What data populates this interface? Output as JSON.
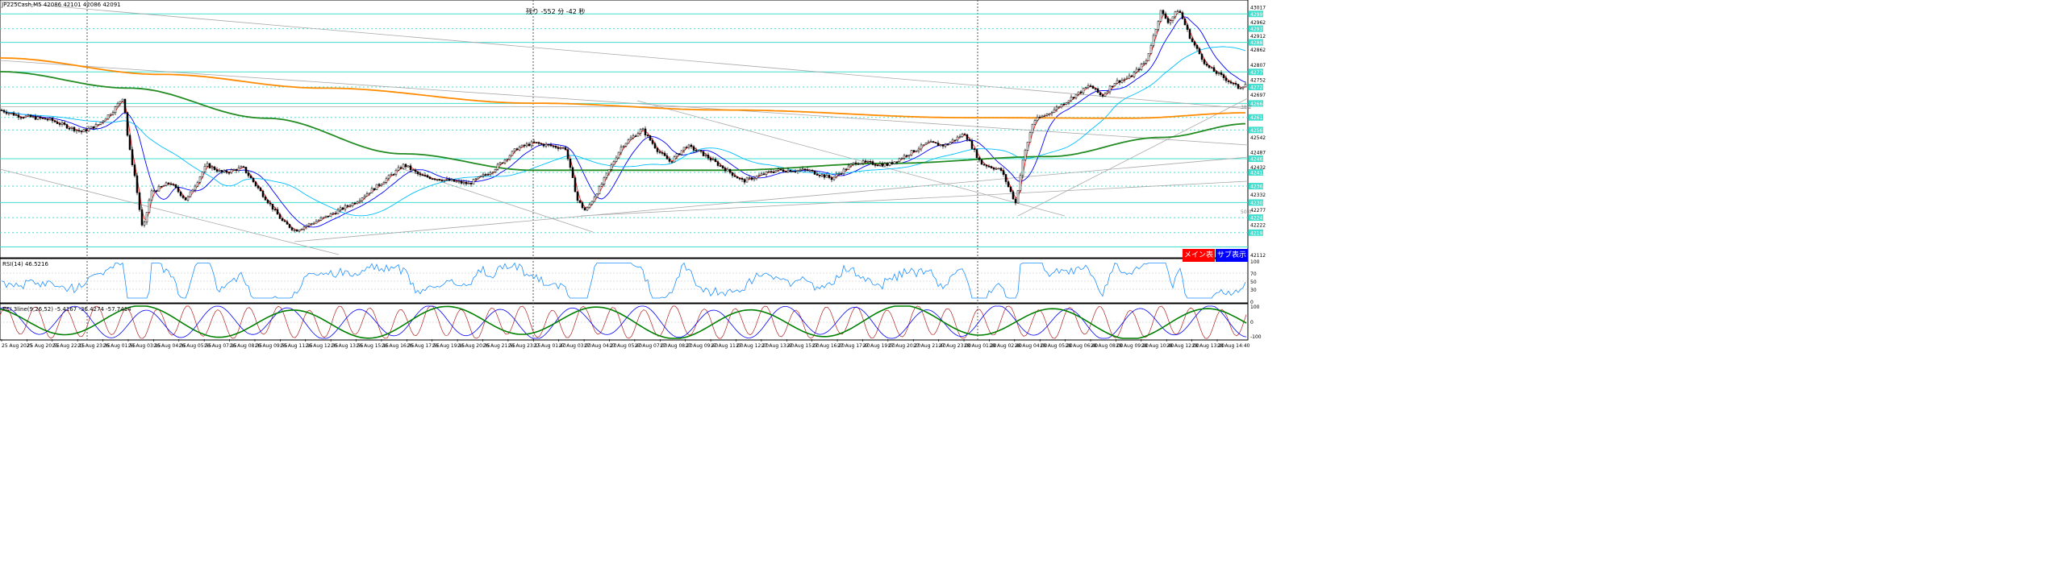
{
  "header": {
    "symbol_info": "JP225Cash,M5  42086 42101 42086 42091",
    "countdown": "残り -552 分 -42 秒"
  },
  "main_axis": {
    "labels": [
      "43017",
      "42962",
      "42912",
      "42862",
      "42807",
      "42752",
      "42697",
      "42542",
      "42487",
      "42432",
      "42332",
      "42277",
      "42222",
      "42112"
    ],
    "highlight_labels": [
      "42991",
      "42937",
      "42887",
      "42779",
      "42724",
      "42664",
      "42613",
      "42567",
      "42462",
      "42412",
      "42362",
      "42302",
      "42247",
      "42192"
    ],
    "fib_labels": [
      "38.2",
      "50.0"
    ]
  },
  "buttons": {
    "main_label": "メイン表示",
    "sub_label": "サブ表示"
  },
  "rsi_panel": {
    "label": "RSI(14) 46.5216",
    "axis_labels": [
      "100",
      "70",
      "50",
      "30",
      "0"
    ]
  },
  "rci_panel": {
    "label": "RCI 3line(9,26,52) -5.4167 -36.4274 -57.7414",
    "axis_labels": [
      "100",
      "0",
      "-100"
    ]
  },
  "time_axis": [
    "25 Aug 2025",
    "25 Aug 20:55",
    "25 Aug 22:15",
    "25 Aug 23:35",
    "26 Aug 01:55",
    "26 Aug 03:15",
    "26 Aug 04:35",
    "26 Aug 05:55",
    "26 Aug 07:15",
    "26 Aug 08:35",
    "26 Aug 09:55",
    "26 Aug 11:15",
    "26 Aug 12:35",
    "26 Aug 13:55",
    "26 Aug 15:15",
    "26 Aug 16:35",
    "26 Aug 17:55",
    "26 Aug 19:15",
    "26 Aug 20:35",
    "26 Aug 21:55",
    "26 Aug 23:15",
    "27 Aug 01:40",
    "27 Aug 03:00",
    "27 Aug 04:20",
    "27 Aug 05:40",
    "27 Aug 07:00",
    "27 Aug 08:20",
    "27 Aug 09:40",
    "27 Aug 11:00",
    "27 Aug 12:20",
    "27 Aug 13:40",
    "27 Aug 15:00",
    "27 Aug 16:20",
    "27 Aug 17:40",
    "27 Aug 19:00",
    "27 Aug 20:20",
    "27 Aug 21:40",
    "27 Aug 23:00",
    "28 Aug 01:20",
    "28 Aug 02:40",
    "28 Aug 04:00",
    "28 Aug 05:20",
    "28 Aug 06:40",
    "28 Aug 08:00",
    "28 Aug 09:20",
    "28 Aug 10:40",
    "28 Aug 12:00",
    "28 Aug 13:20",
    "28 Aug 14:40"
  ],
  "colors": {
    "background": "#ffffff",
    "grid": "#c0c0c0",
    "bull_candle": "#ffffff",
    "bear_candle": "#000000",
    "horizontal_lines": "#40e0d0",
    "dotted_levels": "#40e0d0",
    "ma_fast": "#ff0000",
    "ma_mid": "#0000ff",
    "ma_slow": "#00bfff",
    "ma_long_orange": "#ff8c00",
    "ma_long_green": "#228b22",
    "trendlines": "#a9a9a9",
    "rsi_line": "#1e90ff",
    "rci_short": "#b22222",
    "rci_mid": "#0000ff",
    "rci_long": "#008000",
    "button_main": "#ff0000",
    "button_sub": "#0000ff"
  },
  "chart_data": {
    "type": "candlestick",
    "instrument": "JP225Cash",
    "timeframe": "M5",
    "ylim": [
      42112,
      43030
    ],
    "anchors": [
      [
        0,
        42640
      ],
      [
        20,
        42620
      ],
      [
        60,
        42605
      ],
      [
        100,
        42560
      ],
      [
        120,
        42585
      ],
      [
        140,
        42640
      ],
      [
        152,
        42690
      ],
      [
        158,
        42520
      ],
      [
        166,
        42400
      ],
      [
        176,
        42195
      ],
      [
        186,
        42340
      ],
      [
        210,
        42375
      ],
      [
        230,
        42310
      ],
      [
        255,
        42440
      ],
      [
        275,
        42410
      ],
      [
        300,
        42430
      ],
      [
        320,
        42350
      ],
      [
        350,
        42230
      ],
      [
        365,
        42200
      ],
      [
        400,
        42245
      ],
      [
        440,
        42305
      ],
      [
        470,
        42370
      ],
      [
        500,
        42440
      ],
      [
        520,
        42400
      ],
      [
        540,
        42390
      ],
      [
        580,
        42370
      ],
      [
        610,
        42420
      ],
      [
        640,
        42500
      ],
      [
        660,
        42520
      ],
      [
        700,
        42500
      ],
      [
        715,
        42310
      ],
      [
        725,
        42270
      ],
      [
        745,
        42370
      ],
      [
        770,
        42510
      ],
      [
        795,
        42570
      ],
      [
        815,
        42490
      ],
      [
        830,
        42450
      ],
      [
        850,
        42510
      ],
      [
        870,
        42480
      ],
      [
        890,
        42440
      ],
      [
        920,
        42380
      ],
      [
        960,
        42420
      ],
      [
        1000,
        42420
      ],
      [
        1030,
        42390
      ],
      [
        1060,
        42450
      ],
      [
        1100,
        42440
      ],
      [
        1150,
        42520
      ],
      [
        1170,
        42510
      ],
      [
        1195,
        42555
      ],
      [
        1205,
        42500
      ],
      [
        1215,
        42445
      ],
      [
        1240,
        42420
      ],
      [
        1258,
        42300
      ],
      [
        1268,
        42470
      ],
      [
        1280,
        42600
      ],
      [
        1300,
        42630
      ],
      [
        1330,
        42690
      ],
      [
        1350,
        42730
      ],
      [
        1365,
        42690
      ],
      [
        1380,
        42740
      ],
      [
        1400,
        42760
      ],
      [
        1420,
        42820
      ],
      [
        1438,
        43000
      ],
      [
        1448,
        42960
      ],
      [
        1460,
        43010
      ],
      [
        1475,
        42900
      ],
      [
        1495,
        42800
      ],
      [
        1515,
        42760
      ],
      [
        1535,
        42720
      ],
      [
        1545,
        42740
      ]
    ],
    "annotations": [
      "残り -552 分 -42 秒"
    ]
  }
}
